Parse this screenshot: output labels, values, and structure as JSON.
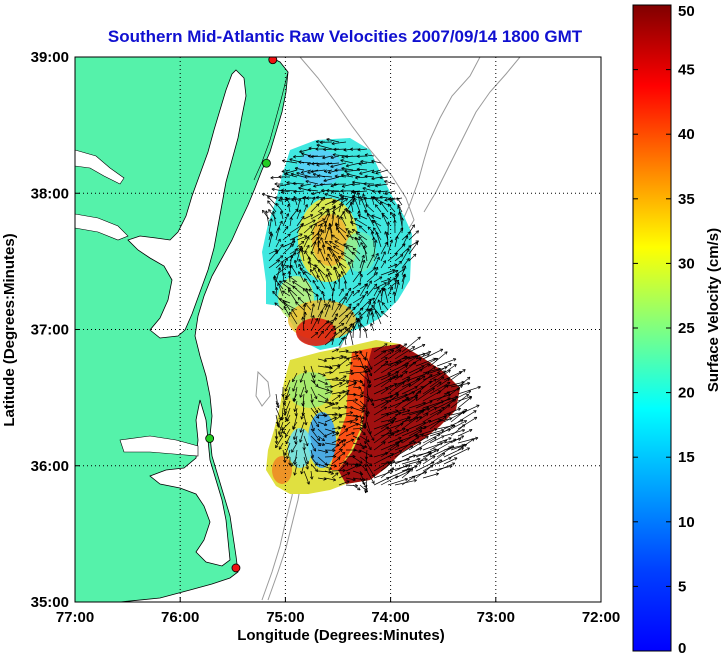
{
  "title": "Southern Mid-Atlantic Raw Velocities 2007/09/14 1800 GMT",
  "xlabel": "Longitude (Degrees:Minutes)",
  "ylabel": "Latitude (Degrees:Minutes)",
  "colorbar_label": "Surface Velocity (cm/s)",
  "colors": {
    "title": "#1010d0",
    "land": "#55f2aa",
    "depth_contour": "#9a9a9a",
    "coast": "#000000",
    "station_green": "#22cc22",
    "station_red": "#ee1111"
  },
  "x_ticks": [
    {
      "value": -77,
      "label": "77:00"
    },
    {
      "value": -76,
      "label": "76:00"
    },
    {
      "value": -75,
      "label": "75:00"
    },
    {
      "value": -74,
      "label": "74:00"
    },
    {
      "value": -73,
      "label": "73:00"
    },
    {
      "value": -72,
      "label": "72:00"
    }
  ],
  "y_ticks": [
    {
      "value": 35,
      "label": "35:00"
    },
    {
      "value": 36,
      "label": "36:00"
    },
    {
      "value": 37,
      "label": "37:00"
    },
    {
      "value": 38,
      "label": "38:00"
    },
    {
      "value": 39,
      "label": "39:00"
    }
  ],
  "colorbar_ticks": [
    {
      "value": 0,
      "label": "0"
    },
    {
      "value": 5,
      "label": "5"
    },
    {
      "value": 10,
      "label": "10"
    },
    {
      "value": 15,
      "label": "15"
    },
    {
      "value": 20,
      "label": "20"
    },
    {
      "value": 25,
      "label": "25"
    },
    {
      "value": 30,
      "label": "30"
    },
    {
      "value": 35,
      "label": "35"
    },
    {
      "value": 40,
      "label": "40"
    },
    {
      "value": 45,
      "label": "45"
    },
    {
      "value": 50,
      "label": "50"
    }
  ],
  "map": {
    "lon_range": [
      -77,
      -72
    ],
    "lat_range": [
      35,
      39
    ],
    "grid": true,
    "colorbar_range": [
      0,
      50
    ],
    "colormap": "jet"
  },
  "stations": [
    {
      "name": "",
      "lon": -75.12,
      "lat": 38.98,
      "color": "red"
    },
    {
      "name": "",
      "lon": -75.18,
      "lat": 38.22,
      "color": "green"
    },
    {
      "name": "",
      "lon": -75.72,
      "lat": 36.2,
      "color": "green"
    },
    {
      "name": "",
      "lon": -75.47,
      "lat": 35.25,
      "color": "red"
    }
  ],
  "velocity_regions": [
    {
      "name": "north",
      "lon_range": [
        -75.05,
        -73.8
      ],
      "lat_range": [
        36.8,
        38.4
      ]
    },
    {
      "name": "south",
      "lon_range": [
        -75.25,
        -73.3
      ],
      "lat_range": [
        35.85,
        36.85
      ]
    }
  ]
}
